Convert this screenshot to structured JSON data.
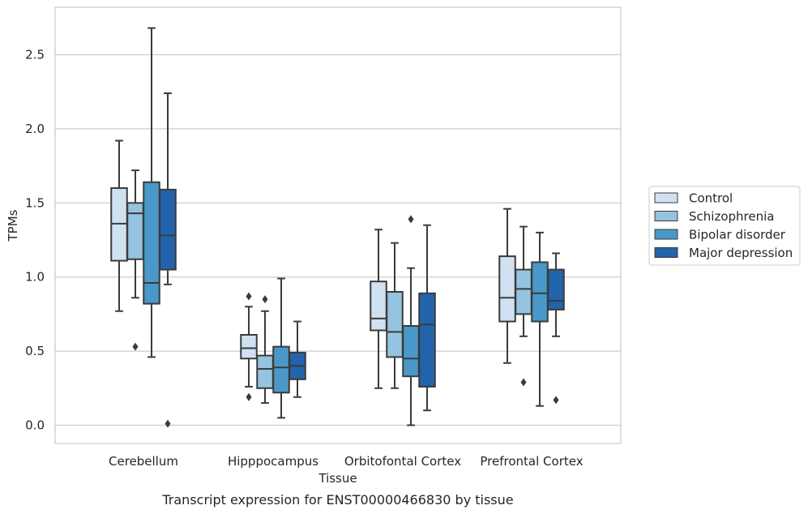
{
  "chart_data": {
    "type": "box",
    "title": "",
    "caption": "Transcript expression for ENST00000466830 by tissue",
    "xlabel": "Tissue",
    "ylabel": "TPMs",
    "ylim": [
      -0.13,
      2.82
    ],
    "yticks": [
      0.0,
      0.5,
      1.0,
      1.5,
      2.0,
      2.5
    ],
    "ytick_labels": [
      "0.0",
      "0.5",
      "1.0",
      "1.5",
      "2.0",
      "2.5"
    ],
    "grid": "horizontal",
    "legend_position": "right",
    "categories": [
      "Cerebellum",
      "Hipppocampus",
      "Orbitofontal Cortex",
      "Prefrontal Cortex"
    ],
    "series": [
      {
        "name": "Control",
        "color": "#d0e1f2",
        "boxes": [
          {
            "whislo": 0.77,
            "q1": 1.11,
            "med": 1.36,
            "q3": 1.6,
            "whishi": 1.92,
            "fliers": []
          },
          {
            "whislo": 0.26,
            "q1": 0.45,
            "med": 0.52,
            "q3": 0.61,
            "whishi": 0.8,
            "fliers": [
              0.19,
              0.87
            ]
          },
          {
            "whislo": 0.25,
            "q1": 0.64,
            "med": 0.72,
            "q3": 0.97,
            "whishi": 1.32,
            "fliers": []
          },
          {
            "whislo": 0.42,
            "q1": 0.7,
            "med": 0.86,
            "q3": 1.14,
            "whishi": 1.46,
            "fliers": []
          }
        ]
      },
      {
        "name": "Schizophrenia",
        "color": "#94c4df",
        "boxes": [
          {
            "whislo": 0.86,
            "q1": 1.12,
            "med": 1.43,
            "q3": 1.5,
            "whishi": 1.72,
            "fliers": [
              0.53
            ]
          },
          {
            "whislo": 0.15,
            "q1": 0.25,
            "med": 0.38,
            "q3": 0.47,
            "whishi": 0.77,
            "fliers": [
              0.85
            ]
          },
          {
            "whislo": 0.25,
            "q1": 0.46,
            "med": 0.63,
            "q3": 0.9,
            "whishi": 1.23,
            "fliers": []
          },
          {
            "whislo": 0.6,
            "q1": 0.75,
            "med": 0.92,
            "q3": 1.05,
            "whishi": 1.34,
            "fliers": [
              0.29
            ]
          }
        ]
      },
      {
        "name": "Bipolar disorder",
        "color": "#4a98c9",
        "boxes": [
          {
            "whislo": 0.46,
            "q1": 0.82,
            "med": 0.96,
            "q3": 1.64,
            "whishi": 2.68,
            "fliers": []
          },
          {
            "whislo": 0.05,
            "q1": 0.22,
            "med": 0.39,
            "q3": 0.53,
            "whishi": 0.99,
            "fliers": []
          },
          {
            "whislo": 0.0,
            "q1": 0.33,
            "med": 0.45,
            "q3": 0.67,
            "whishi": 1.06,
            "fliers": [
              1.39
            ]
          },
          {
            "whislo": 0.13,
            "q1": 0.7,
            "med": 0.89,
            "q3": 1.1,
            "whishi": 1.3,
            "fliers": []
          }
        ]
      },
      {
        "name": "Major depression",
        "color": "#2164ab",
        "boxes": [
          {
            "whislo": 0.95,
            "q1": 1.05,
            "med": 1.28,
            "q3": 1.59,
            "whishi": 2.24,
            "fliers": [
              0.01
            ]
          },
          {
            "whislo": 0.19,
            "q1": 0.31,
            "med": 0.4,
            "q3": 0.49,
            "whishi": 0.7,
            "fliers": []
          },
          {
            "whislo": 0.1,
            "q1": 0.26,
            "med": 0.68,
            "q3": 0.89,
            "whishi": 1.35,
            "fliers": []
          },
          {
            "whislo": 0.6,
            "q1": 0.78,
            "med": 0.84,
            "q3": 1.05,
            "whishi": 1.16,
            "fliers": [
              0.17
            ]
          }
        ]
      }
    ]
  }
}
